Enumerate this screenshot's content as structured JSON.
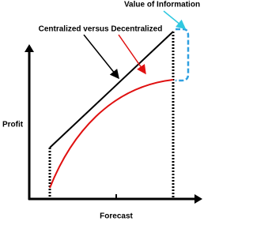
{
  "annotations": {
    "value_of_information": "Value of Information",
    "comparison": "Centralized versus Decentralized"
  },
  "axes": {
    "y_label": "Profit",
    "x_label": "Forecast"
  }
}
